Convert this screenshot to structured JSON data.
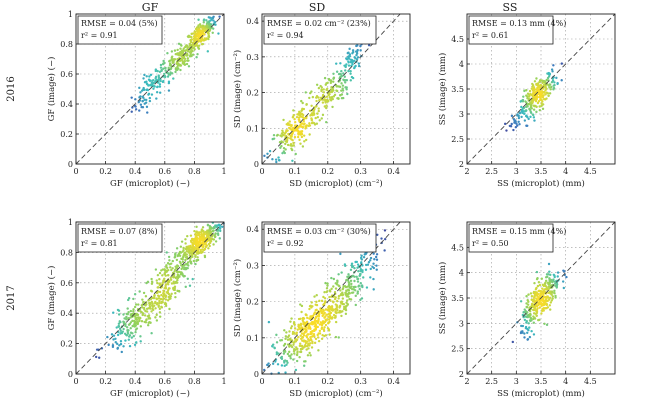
{
  "figure": {
    "column_titles": [
      "GF",
      "SD",
      "SS"
    ],
    "row_labels": [
      "2016",
      "2017"
    ]
  },
  "chart_data": [
    {
      "type": "scatter",
      "panel": "gf-2016",
      "row": "2016",
      "col": "GF",
      "xlabel": "GF (microplot) (−)",
      "ylabel": "GF (image) (−)",
      "xlim": [
        0,
        1
      ],
      "ylim": [
        0,
        1
      ],
      "xticks": [
        "0",
        "0.2",
        "0.4",
        "0.6",
        "0.8",
        "1"
      ],
      "yticks": [
        "0",
        "0.2",
        "0.4",
        "0.6",
        "0.8",
        "1"
      ],
      "stats": [
        "RMSE = 0.04 (5%)",
        "r² = 0.91"
      ],
      "clusters": [
        {
          "cx": 0.5,
          "cy": 0.5,
          "sx": 0.06,
          "sy": 0.08,
          "n": 90
        },
        {
          "cx": 0.7,
          "cy": 0.7,
          "sx": 0.07,
          "sy": 0.07,
          "n": 180
        },
        {
          "cx": 0.85,
          "cy": 0.87,
          "sx": 0.05,
          "sy": 0.05,
          "n": 220
        }
      ],
      "grid": true,
      "identity_line": true
    },
    {
      "type": "scatter",
      "panel": "sd-2016",
      "row": "2016",
      "col": "SD",
      "xlabel": "SD (microplot) (cm⁻²)",
      "ylabel": "SD (image) (cm⁻²)",
      "xlim": [
        0,
        0.45
      ],
      "ylim": [
        0,
        0.42
      ],
      "xticks": [
        "0",
        "0.1",
        "0.2",
        "0.3",
        "0.4"
      ],
      "yticks": [
        "0",
        "0.1",
        "0.2",
        "0.3",
        "0.4"
      ],
      "stats": [
        "RMSE = 0.02 cm⁻² (23%)",
        "r² = 0.94"
      ],
      "clusters": [
        {
          "cx": 0.1,
          "cy": 0.09,
          "sx": 0.04,
          "sy": 0.04,
          "n": 200
        },
        {
          "cx": 0.2,
          "cy": 0.2,
          "sx": 0.04,
          "sy": 0.04,
          "n": 160
        },
        {
          "cx": 0.28,
          "cy": 0.3,
          "sx": 0.02,
          "sy": 0.03,
          "n": 50
        }
      ],
      "grid": true,
      "identity_line": true
    },
    {
      "type": "scatter",
      "panel": "ss-2016",
      "row": "2016",
      "col": "SS",
      "xlabel": "SS (microplot) (mm)",
      "ylabel": "SS (image) (mm)",
      "xlim": [
        2,
        5
      ],
      "ylim": [
        2,
        5
      ],
      "xticks": [
        "2",
        "2.5",
        "3",
        "3.5",
        "4",
        "4.5"
      ],
      "yticks": [
        "2",
        "2.5",
        "3",
        "3.5",
        "4",
        "4.5"
      ],
      "stats": [
        "RMSE = 0.13 mm (4%)",
        "r² = 0.61"
      ],
      "clusters": [
        {
          "cx": 3.45,
          "cy": 3.4,
          "sx": 0.18,
          "sy": 0.22,
          "n": 260
        },
        {
          "cx": 3.0,
          "cy": 2.9,
          "sx": 0.1,
          "sy": 0.1,
          "n": 30
        }
      ],
      "grid": true,
      "identity_line": true
    },
    {
      "type": "scatter",
      "panel": "gf-2017",
      "row": "2017",
      "col": "GF",
      "xlabel": "GF (microplot) (−)",
      "ylabel": "GF (image) (−)",
      "xlim": [
        0,
        1
      ],
      "ylim": [
        0,
        1
      ],
      "xticks": [
        "0",
        "0.2",
        "0.4",
        "0.6",
        "0.8",
        "1"
      ],
      "yticks": [
        "0",
        "0.2",
        "0.4",
        "0.6",
        "0.8",
        "1"
      ],
      "stats": [
        "RMSE = 0.07 (8%)",
        "r² = 0.81"
      ],
      "clusters": [
        {
          "cx": 0.4,
          "cy": 0.35,
          "sx": 0.1,
          "sy": 0.1,
          "n": 200
        },
        {
          "cx": 0.62,
          "cy": 0.6,
          "sx": 0.09,
          "sy": 0.12,
          "n": 260
        },
        {
          "cx": 0.85,
          "cy": 0.88,
          "sx": 0.07,
          "sy": 0.07,
          "n": 320
        }
      ],
      "grid": true,
      "identity_line": true
    },
    {
      "type": "scatter",
      "panel": "sd-2017",
      "row": "2017",
      "col": "SD",
      "xlabel": "SD (microplot) (cm⁻²)",
      "ylabel": "SD (image) (cm⁻²)",
      "xlim": [
        0,
        0.45
      ],
      "ylim": [
        0,
        0.42
      ],
      "xticks": [
        "0",
        "0.1",
        "0.2",
        "0.3",
        "0.4"
      ],
      "yticks": [
        "0",
        "0.1",
        "0.2",
        "0.3",
        "0.4"
      ],
      "stats": [
        "RMSE = 0.03 cm⁻² (30%)",
        "r² = 0.92"
      ],
      "clusters": [
        {
          "cx": 0.12,
          "cy": 0.1,
          "sx": 0.05,
          "sy": 0.05,
          "n": 300
        },
        {
          "cx": 0.22,
          "cy": 0.2,
          "sx": 0.05,
          "sy": 0.05,
          "n": 260
        },
        {
          "cx": 0.3,
          "cy": 0.3,
          "sx": 0.03,
          "sy": 0.04,
          "n": 80
        }
      ],
      "grid": true,
      "identity_line": true
    },
    {
      "type": "scatter",
      "panel": "ss-2017",
      "row": "2017",
      "col": "SS",
      "xlabel": "SS (microplot) (mm)",
      "ylabel": "SS (image) (mm)",
      "xlim": [
        2,
        5
      ],
      "ylim": [
        2,
        5
      ],
      "xticks": [
        "2",
        "2.5",
        "3",
        "3.5",
        "4",
        "4.5"
      ],
      "yticks": [
        "2",
        "2.5",
        "3",
        "3.5",
        "4",
        "4.5"
      ],
      "stats": [
        "RMSE = 0.15 mm (4%)",
        "r² = 0.50"
      ],
      "clusters": [
        {
          "cx": 3.5,
          "cy": 3.45,
          "sx": 0.2,
          "sy": 0.3,
          "n": 320
        }
      ],
      "grid": true,
      "identity_line": true
    }
  ]
}
